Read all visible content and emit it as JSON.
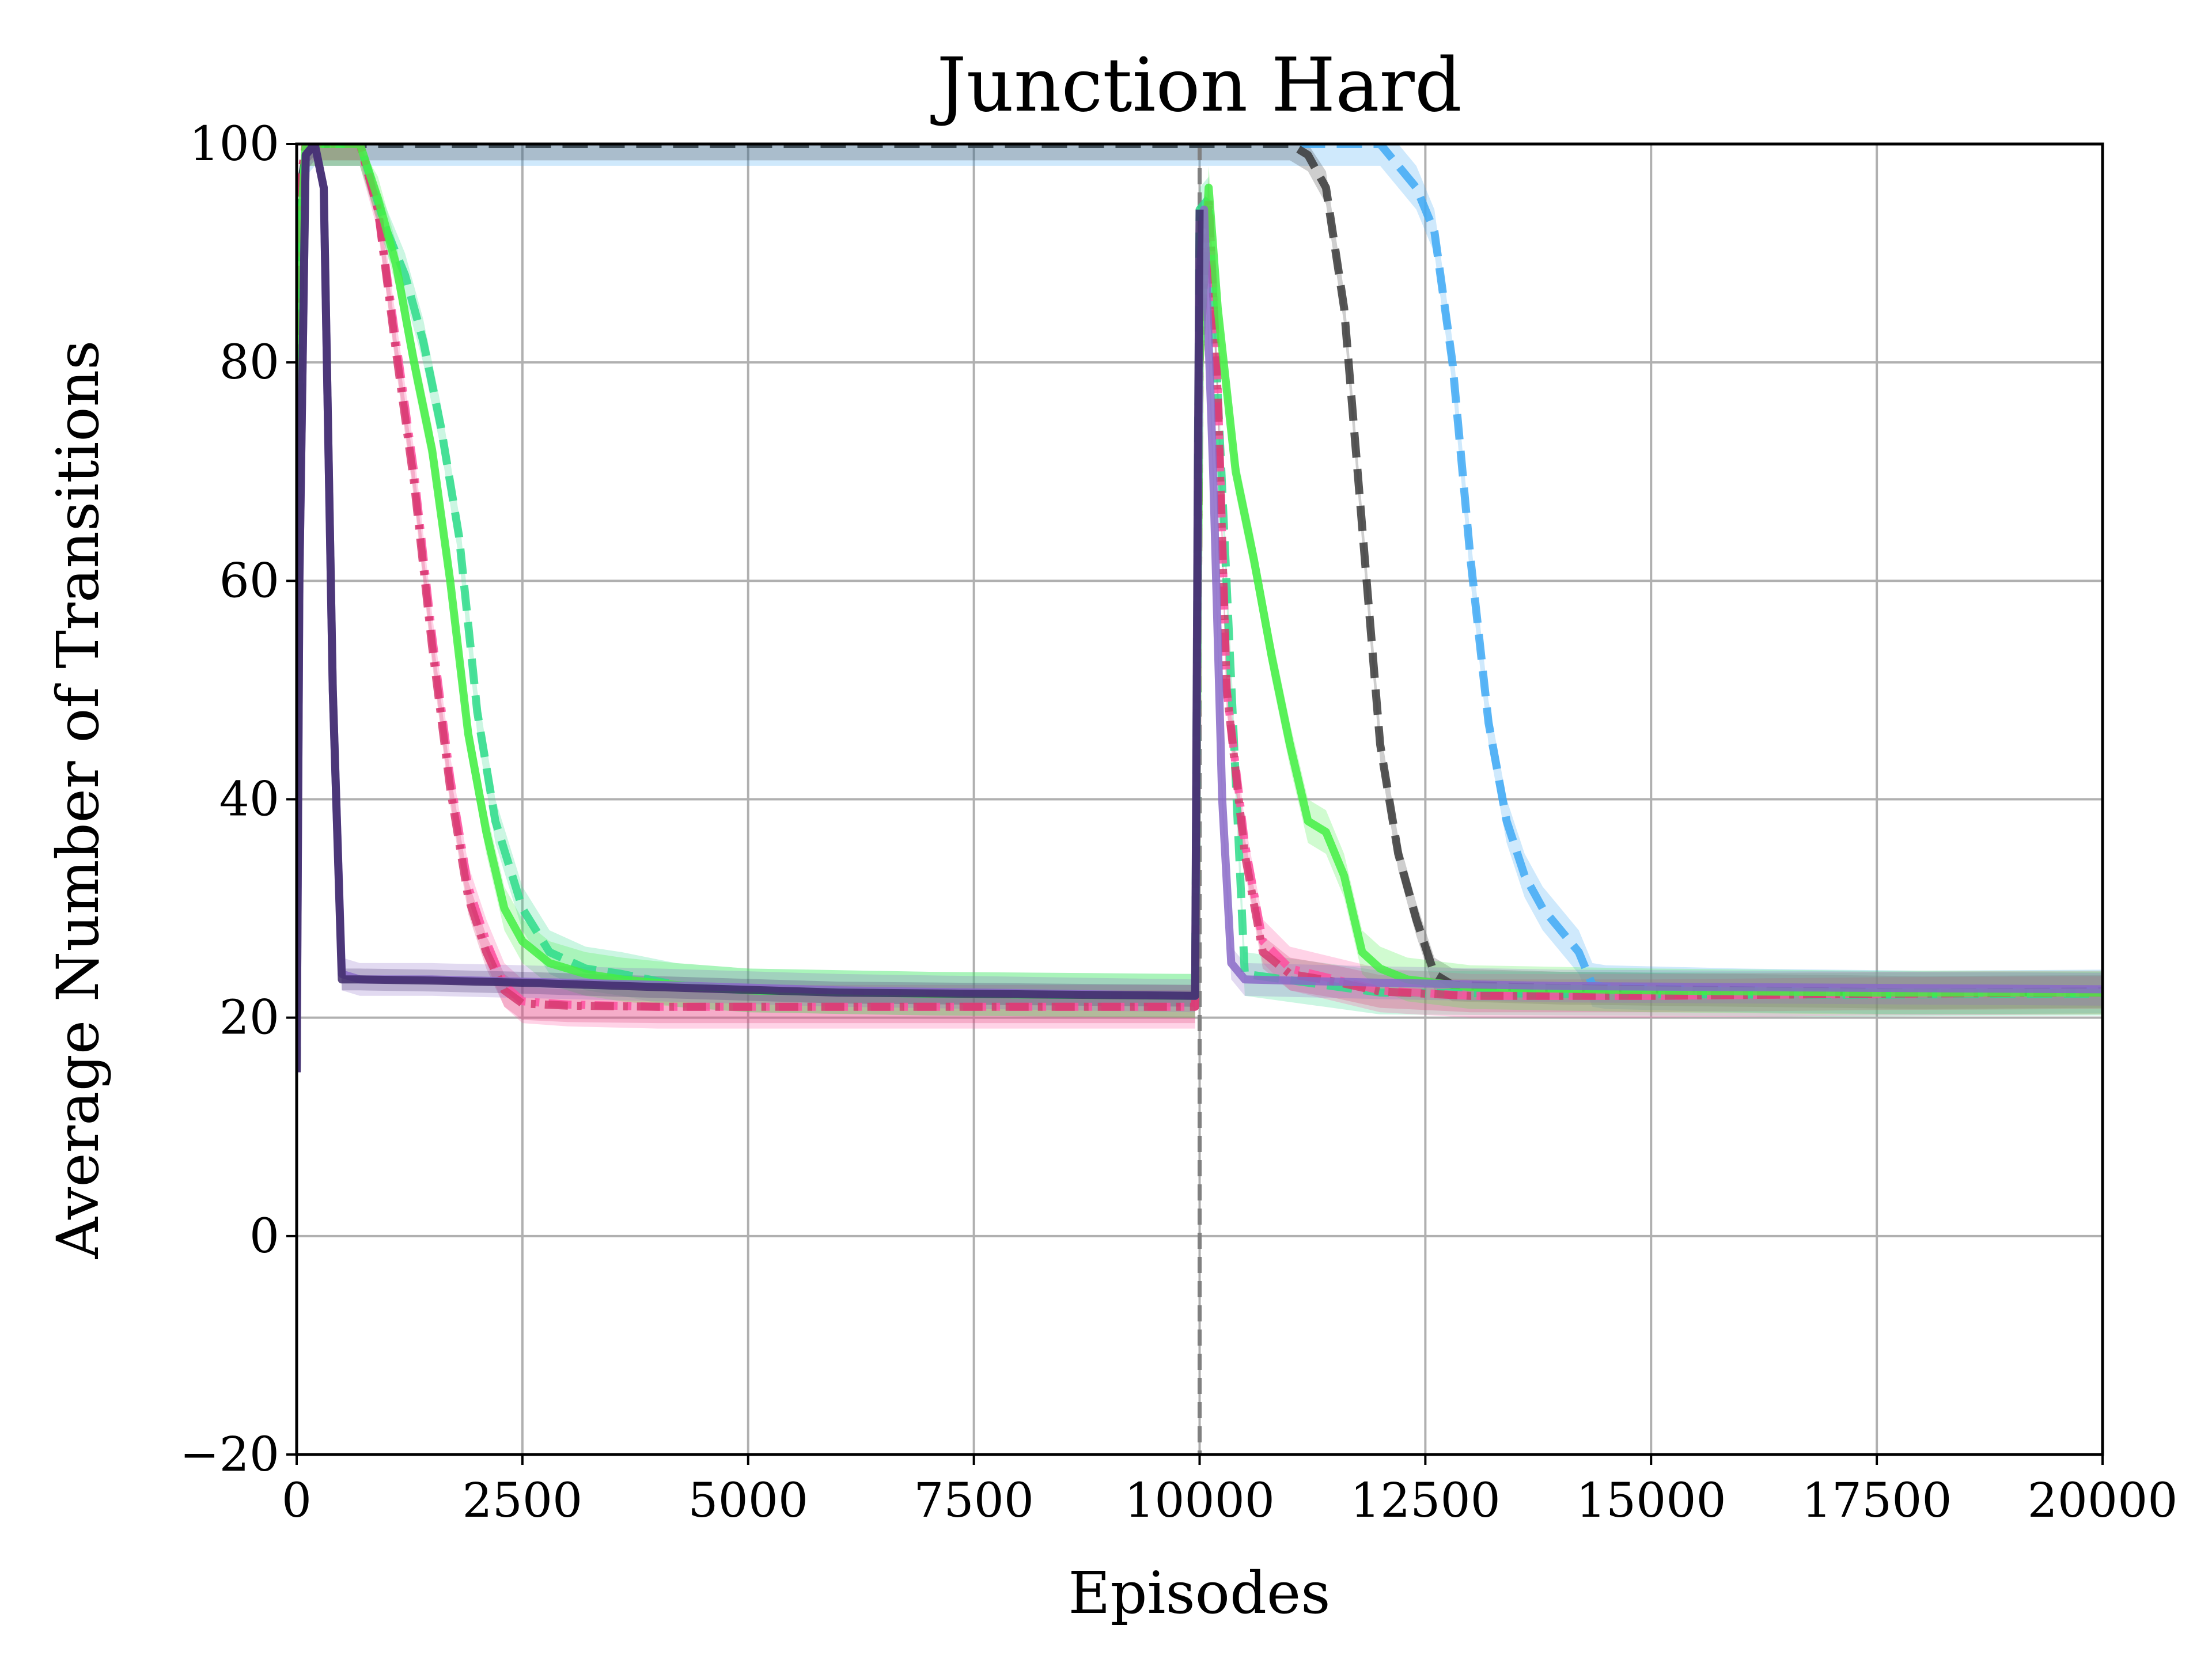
{
  "chart_data": {
    "type": "line",
    "title": "Junction Hard",
    "xlabel": "Episodes",
    "ylabel": "Average Number of Transitions",
    "xlim": [
      0,
      20000
    ],
    "ylim": [
      -20,
      100
    ],
    "xticks": [
      0,
      2500,
      5000,
      7500,
      10000,
      12500,
      15000,
      17500,
      20000
    ],
    "xtick_labels": [
      "0",
      "2500",
      "5000",
      "7500",
      "10000",
      "12500",
      "15000",
      "17500",
      "20000"
    ],
    "yticks": [
      -20,
      0,
      20,
      40,
      60,
      80,
      100
    ],
    "ytick_labels": [
      "−20",
      "0",
      "20",
      "40",
      "60",
      "80",
      "100"
    ],
    "grid": true,
    "legend": "none",
    "vline": {
      "x": 10000,
      "color": "#808080",
      "style": "dashed"
    },
    "series": [
      {
        "color": "#3fa9f5",
        "style": "dashed",
        "band": 2.0,
        "x": [
          0,
          40,
          100,
          200,
          500,
          9950,
          9980,
          10000,
          10100,
          12000,
          12200,
          12400,
          12600,
          12800,
          13000,
          13200,
          13400,
          13600,
          13800,
          14000,
          14200,
          14350,
          14500,
          16000,
          18000,
          20000
        ],
        "y": [
          15,
          96,
          99,
          100,
          100,
          100,
          100,
          100,
          100,
          100,
          98,
          96,
          92,
          80,
          62,
          47,
          38,
          33,
          30,
          28,
          26,
          23,
          22.8,
          22.5,
          22.3,
          22.4
        ]
      },
      {
        "color": "#3a3a3a",
        "style": "dashed",
        "band": 1.5,
        "x": [
          0,
          40,
          100,
          200,
          500,
          9950,
          9980,
          10000,
          10100,
          11000,
          11200,
          11400,
          11600,
          11800,
          12000,
          12200,
          12400,
          12600,
          12800,
          14000,
          16000,
          18000,
          20000
        ],
        "y": [
          15,
          96,
          99,
          100,
          100,
          100,
          100,
          100,
          100,
          100,
          99,
          96,
          85,
          65,
          45,
          35,
          29,
          24,
          23,
          22.7,
          22.5,
          22.3,
          22.4
        ]
      },
      {
        "color": "#2edc8a",
        "style": "dashed",
        "band": 2.0,
        "x": [
          0,
          30,
          100,
          300,
          700,
          1000,
          1200,
          1400,
          1600,
          1800,
          2000,
          2200,
          2500,
          2800,
          3200,
          3600,
          4200,
          5000,
          7000,
          9950,
          10000,
          10100,
          10500,
          12000,
          14000,
          17000,
          20000
        ],
        "y": [
          15,
          90,
          100,
          100,
          100,
          92,
          88,
          82,
          74,
          64,
          48,
          38,
          30,
          26,
          24.5,
          24,
          23,
          22.5,
          22.2,
          22,
          94,
          95,
          24,
          22.3,
          22.2,
          22.1,
          22.2
        ]
      },
      {
        "color": "#ff4fa0",
        "style": "dashdot",
        "band": 2.0,
        "x": [
          0,
          30,
          100,
          300,
          700,
          900,
          1100,
          1300,
          1500,
          1700,
          1900,
          2100,
          2300,
          2500,
          3000,
          4000,
          6000,
          8000,
          9950,
          10000,
          10100,
          10200,
          10300,
          10500,
          10700,
          11000,
          11500,
          12000,
          13000,
          15000,
          17500,
          20000
        ],
        "y": [
          15,
          96,
          100,
          100,
          100,
          94,
          82,
          70,
          55,
          42,
          32,
          27,
          23,
          21.5,
          21.2,
          21,
          21,
          21,
          21,
          80,
          95,
          78,
          50,
          36,
          27,
          24.5,
          23.5,
          22.5,
          22,
          22,
          22.2,
          22.3
        ]
      },
      {
        "color": "#d63a70",
        "style": "dashdot",
        "band": 1.5,
        "x": [
          0,
          30,
          100,
          300,
          700,
          900,
          1100,
          1300,
          1500,
          1700,
          1900,
          2100,
          2300,
          2500,
          3000,
          4000,
          6000,
          8000,
          9950,
          10000,
          10100,
          10200,
          10300,
          10500,
          10700,
          11000,
          11500,
          12000,
          13000,
          15000,
          17500,
          20000
        ],
        "y": [
          15,
          96,
          100,
          100,
          100,
          94,
          81,
          69,
          54,
          41,
          31,
          26,
          22.5,
          21.3,
          21.1,
          21,
          21,
          21,
          21,
          80,
          95,
          77,
          50,
          35,
          26,
          24,
          23.3,
          22.4,
          22,
          22,
          22.2,
          22.3
        ]
      },
      {
        "color": "#44ee44",
        "style": "solid",
        "band": 2.0,
        "x": [
          0,
          30,
          100,
          300,
          700,
          900,
          1100,
          1300,
          1500,
          1700,
          1900,
          2100,
          2300,
          2500,
          2800,
          3200,
          3600,
          4200,
          5000,
          7000,
          9950,
          10000,
          10100,
          10200,
          10400,
          10600,
          10800,
          11000,
          11200,
          11400,
          11600,
          11800,
          12000,
          12300,
          13000,
          15000,
          17500,
          20000
        ],
        "y": [
          15,
          90,
          100,
          100,
          100,
          95,
          89,
          80,
          72,
          60,
          46,
          37,
          30,
          27,
          25,
          24,
          23.5,
          23,
          22.5,
          22.2,
          22,
          80,
          96,
          85,
          70,
          62,
          53,
          45,
          38,
          37,
          33,
          26,
          24.5,
          23.5,
          22.8,
          22.5,
          22.3,
          22.3
        ]
      },
      {
        "color": "#8a6ac8",
        "style": "solid",
        "band": 1.5,
        "x": [
          0,
          30,
          100,
          200,
          300,
          400,
          500,
          700,
          1500,
          2500,
          4000,
          6000,
          9950,
          10000,
          10050,
          10150,
          10250,
          10350,
          10500,
          11000,
          12000,
          14000,
          16000,
          18000,
          20000
        ],
        "y": [
          15,
          60,
          99,
          100,
          96,
          50,
          24,
          23.5,
          23.5,
          23.3,
          23,
          22.5,
          22,
          88,
          94,
          70,
          40,
          25,
          23.5,
          23.4,
          23.2,
          22.9,
          22.8,
          22.7,
          22.6
        ]
      },
      {
        "color": "#3e2a6a",
        "style": "solid",
        "band": 1.0,
        "x": [
          0,
          30,
          100,
          200,
          300,
          400,
          500,
          700,
          1500,
          2500,
          4000,
          6000,
          9950,
          9980,
          10000
        ],
        "y": [
          15,
          60,
          99,
          100,
          96,
          50,
          23.5,
          23.5,
          23.4,
          23.2,
          22.8,
          22.3,
          22,
          70,
          94
        ]
      }
    ]
  }
}
